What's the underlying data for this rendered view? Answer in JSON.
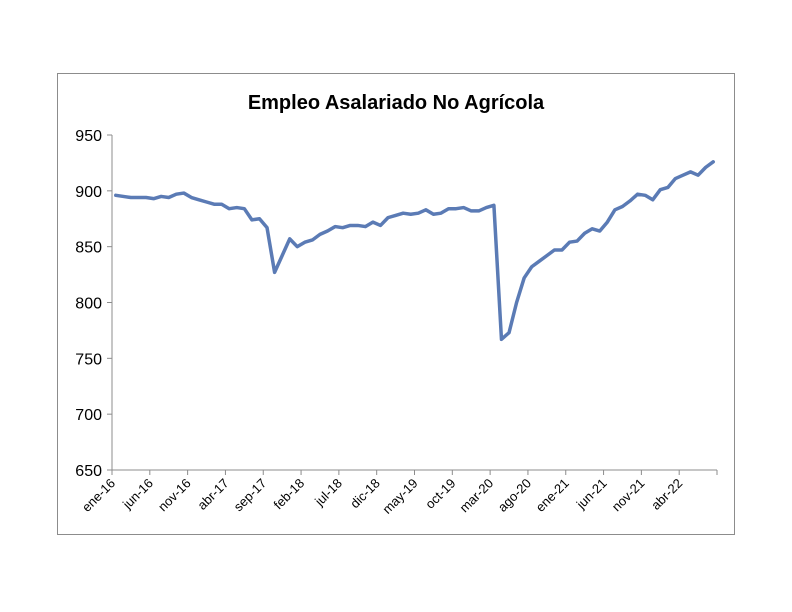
{
  "chart_data": {
    "type": "line",
    "title": "Empleo Asalariado No Agrícola",
    "xlabel": "",
    "ylabel": "",
    "ylim": [
      650,
      950
    ],
    "yticks": [
      "950",
      "900",
      "850",
      "800",
      "750",
      "700",
      "650"
    ],
    "xtick_labels": [
      "ene-16",
      "jun-16",
      "nov-16",
      "abr-17",
      "sep-17",
      "feb-18",
      "jul-18",
      "dic-18",
      "may-19",
      "oct-19",
      "mar-20",
      "ago-20",
      "ene-21",
      "jun-21",
      "nov-21",
      "abr-22"
    ],
    "grid": false,
    "legend": "none",
    "series_color": "#5b7bb5",
    "series": [
      {
        "values": [
          896,
          895,
          894,
          894,
          894,
          893,
          895,
          894,
          897,
          898,
          894,
          892,
          890,
          888,
          888,
          884,
          885,
          884,
          874,
          875,
          867,
          827,
          842,
          857,
          850,
          854,
          856,
          861,
          864,
          868,
          867,
          869,
          869,
          868,
          872,
          869,
          876,
          878,
          880,
          879,
          880,
          883,
          879,
          880,
          884,
          884,
          885,
          882,
          882,
          885,
          887,
          767,
          773,
          800,
          822,
          832,
          837,
          842,
          847,
          847,
          854,
          855,
          862,
          866,
          864,
          872,
          883,
          886,
          891,
          897,
          896,
          892,
          901,
          903,
          911,
          914,
          917,
          914,
          921,
          926
        ]
      }
    ]
  }
}
